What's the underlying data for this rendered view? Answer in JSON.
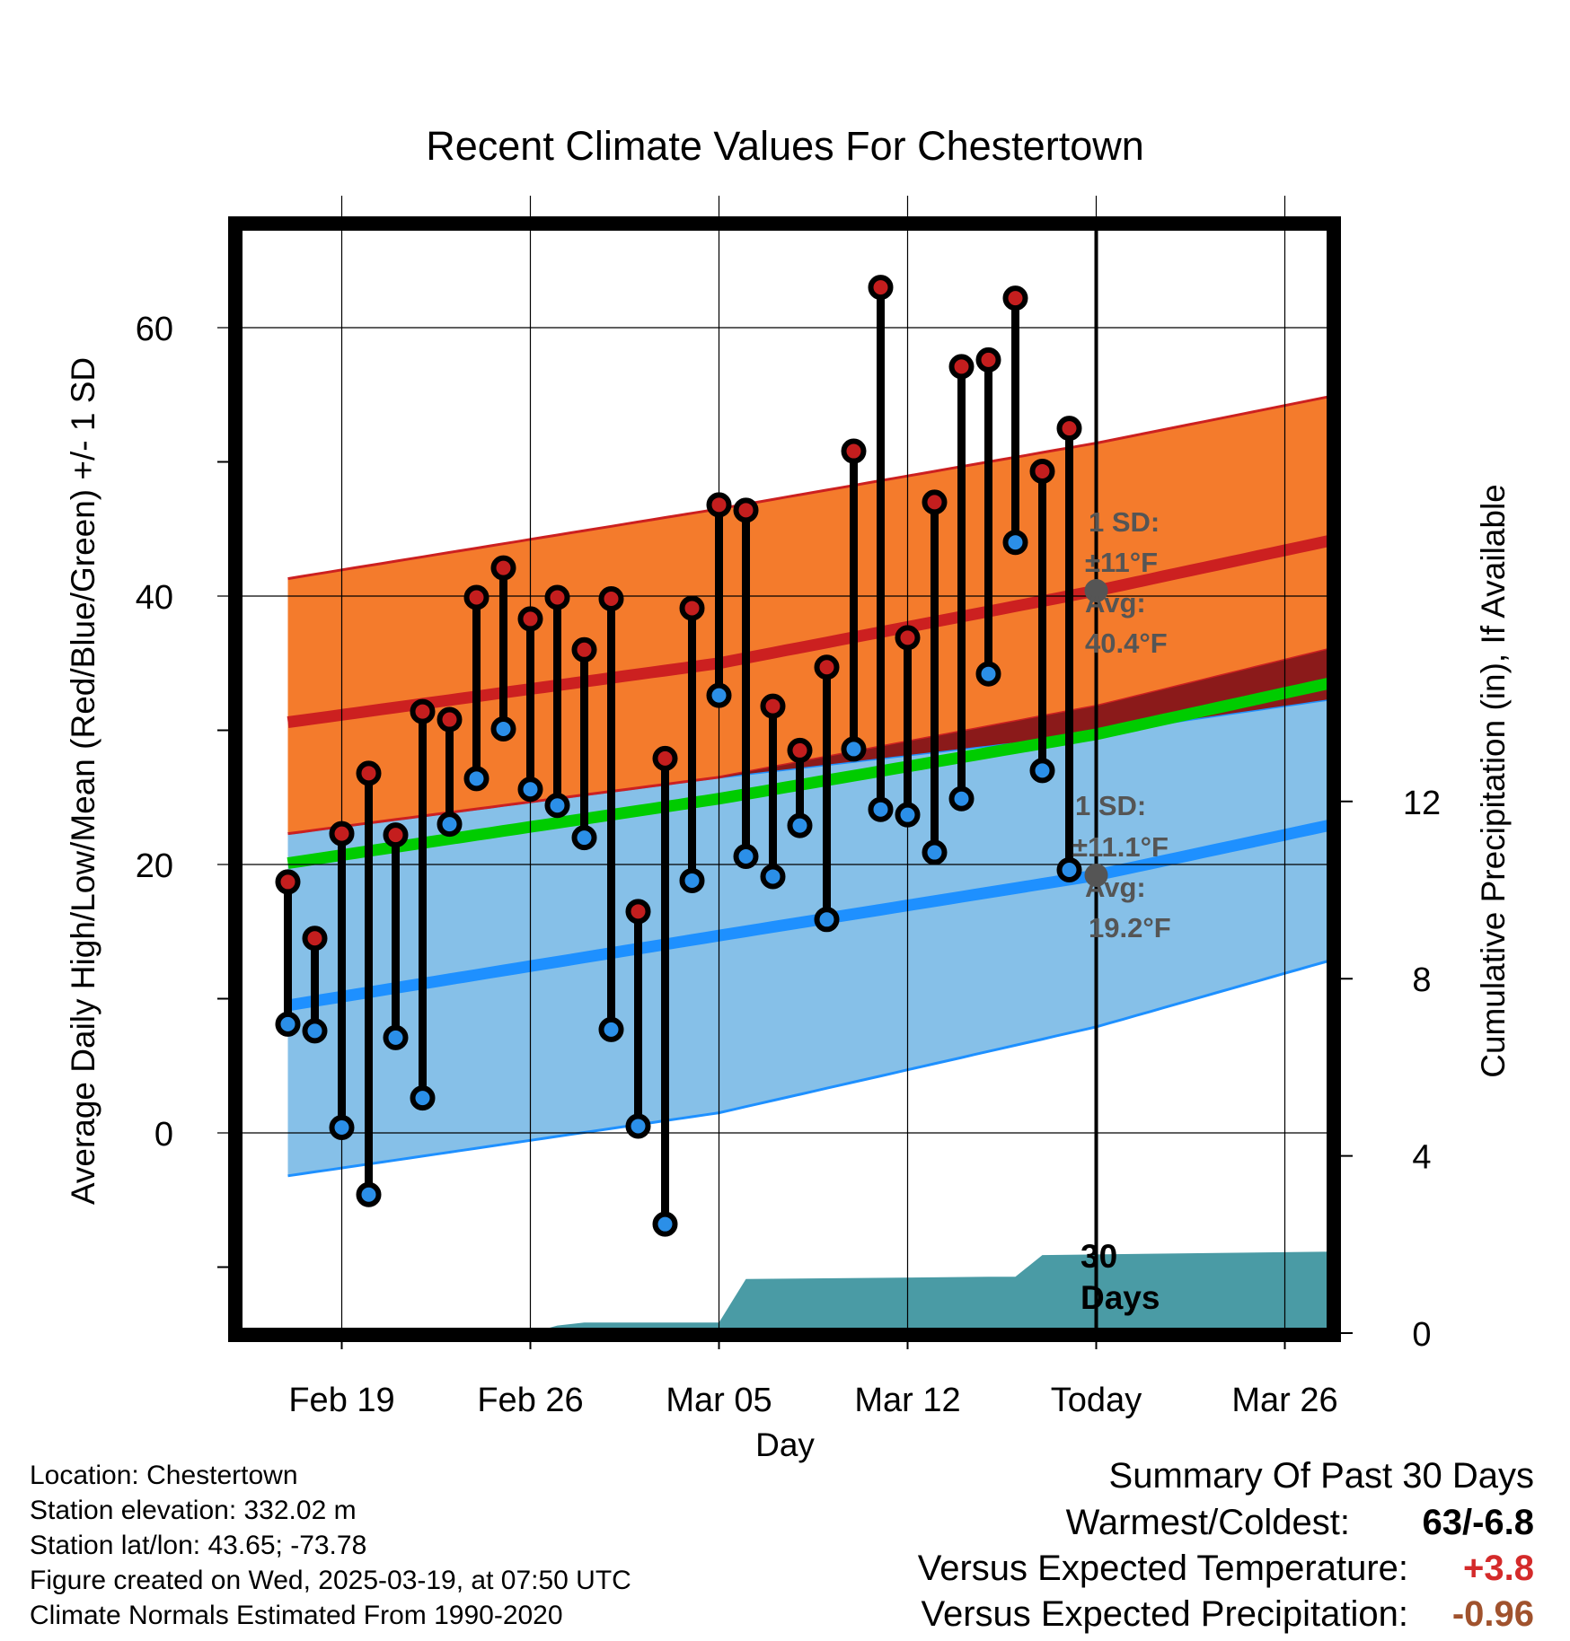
{
  "chart_data": {
    "type": "line",
    "title": "Recent Climate Values For Chestertown",
    "xlabel": "Day",
    "ylabel": "Average Daily High/Low/Mean (Red/Blue/Green) +/- 1 SD",
    "y2label": "Cumulative Precipitation (in), If Available",
    "x_tick_labels": [
      "Feb 19",
      "Feb 26",
      "Mar 05",
      "Mar 12",
      "Today",
      "Mar 26"
    ],
    "x_tick_dates": [
      "2025-02-19",
      "2025-02-26",
      "2025-03-05",
      "2025-03-12",
      "2025-03-19",
      "2025-03-26"
    ],
    "xlim": [
      "2025-02-16",
      "2025-03-28"
    ],
    "ylim": [
      -14,
      67
    ],
    "y_ticks": [
      0,
      20,
      40,
      60
    ],
    "y2lim": [
      0,
      16.5
    ],
    "y2_ticks": [
      0,
      4,
      8,
      12
    ],
    "grid": true,
    "normals": {
      "x": [
        "2025-02-17",
        "2025-03-05",
        "2025-03-19",
        "2025-03-29"
      ],
      "high_mean": [
        30.6,
        35.0,
        40.4,
        44.7
      ],
      "high_upper": [
        41.3,
        46.5,
        51.4,
        55.4
      ],
      "high_lower": [
        22.3,
        26.5,
        31.8,
        36.7
      ],
      "low_mean": [
        9.5,
        14.7,
        19.2,
        23.5
      ],
      "low_upper": [
        22.3,
        26.5,
        29.8,
        32.7
      ],
      "low_lower": [
        -3.2,
        1.5,
        7.9,
        13.6
      ],
      "mean": [
        20.1,
        24.9,
        29.7,
        34.1
      ]
    },
    "daily": {
      "dates": [
        "2025-02-17",
        "2025-02-18",
        "2025-02-19",
        "2025-02-20",
        "2025-02-21",
        "2025-02-22",
        "2025-02-23",
        "2025-02-24",
        "2025-02-25",
        "2025-02-26",
        "2025-02-27",
        "2025-02-28",
        "2025-03-01",
        "2025-03-02",
        "2025-03-03",
        "2025-03-04",
        "2025-03-05",
        "2025-03-06",
        "2025-03-07",
        "2025-03-08",
        "2025-03-09",
        "2025-03-10",
        "2025-03-11",
        "2025-03-12",
        "2025-03-13",
        "2025-03-14",
        "2025-03-15",
        "2025-03-16",
        "2025-03-17",
        "2025-03-18"
      ],
      "high": [
        18.7,
        14.5,
        22.3,
        26.8,
        22.2,
        31.4,
        30.8,
        39.9,
        42.1,
        38.3,
        39.9,
        36.0,
        39.8,
        16.5,
        27.9,
        39.1,
        46.8,
        46.4,
        31.8,
        28.5,
        34.7,
        50.8,
        63.0,
        36.9,
        47.0,
        57.1,
        57.6,
        62.2,
        49.3,
        52.5
      ],
      "low": [
        8.1,
        7.6,
        0.4,
        -4.6,
        7.1,
        2.6,
        23.0,
        26.4,
        30.1,
        25.6,
        24.4,
        22.0,
        7.7,
        0.5,
        -6.8,
        18.8,
        32.6,
        20.6,
        19.1,
        22.9,
        15.9,
        28.6,
        24.1,
        23.7,
        20.9,
        24.9,
        34.2,
        44.0,
        27.0,
        19.6
      ]
    },
    "precip": {
      "x": [
        "2025-02-16",
        "2025-02-26",
        "2025-02-27",
        "2025-02-28",
        "2025-03-05",
        "2025-03-06",
        "2025-03-15",
        "2025-03-16",
        "2025-03-17",
        "2025-03-28"
      ],
      "cumulative": [
        0,
        0,
        0.17,
        0.24,
        0.24,
        1.22,
        1.27,
        1.27,
        1.76,
        1.84
      ]
    },
    "colors": {
      "high": "#cc2020",
      "high_band": "#f47b2c",
      "low": "#1e90ff",
      "low_band": "#86c0e8",
      "mean": "#00cc00",
      "precip": "#4a9ba5",
      "marker_high": "#c41e1e",
      "marker_low": "#2b8fe8"
    }
  },
  "annotations": {
    "high_sd_1": "1 SD:",
    "high_sd_2": "±11°F",
    "high_avg_1": "Avg:",
    "high_avg_2": "40.4°F",
    "low_sd_1": "1 SD:",
    "low_sd_2": "±11.1°F",
    "low_avg_1": "Avg:",
    "low_avg_2": "19.2°F",
    "precip_1": "30",
    "precip_2": "Days"
  },
  "info": {
    "location": "Location: Chestertown",
    "elevation": "Station elevation: 332.02 m",
    "latlon": "Station lat/lon: 43.65; -73.78",
    "created": "Figure created on Wed, 2025-03-19, at 07:50 UTC",
    "normals": "Climate Normals Estimated From 1990-2020"
  },
  "summary": {
    "heading": "Summary Of Past 30 Days",
    "warmest_label": "Warmest/Coldest:",
    "warmest_value": "63/-6.8",
    "temp_label": "Versus Expected Temperature:",
    "temp_value": "+3.8",
    "temp_color": "#d42a2a",
    "precip_label": "Versus Expected Precipitation:",
    "precip_value": "-0.96",
    "precip_color": "#a0522d"
  }
}
